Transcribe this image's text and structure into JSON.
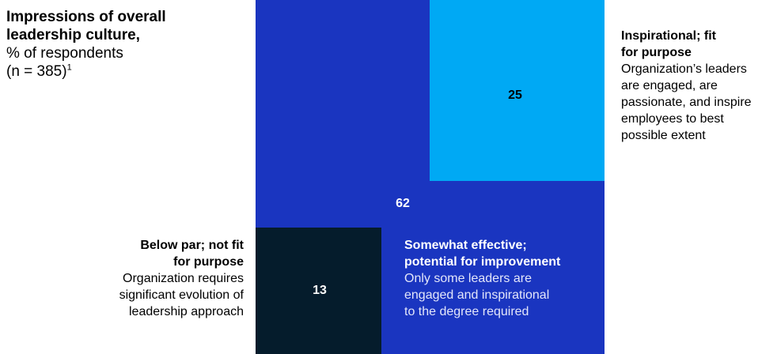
{
  "title": "Impressions of overall leadership culture,",
  "subtitle": "% of respondents",
  "sample": "(n = 385)",
  "footnote_marker": "1",
  "colors": {
    "somewhat": "#1a35c0",
    "inspirational": "#00a9f4",
    "below": "#051c2c"
  },
  "chart_data": {
    "type": "treemap",
    "title": "Impressions of overall leadership culture, % of respondents (n = 385)",
    "unit": "% of respondents",
    "n": 385,
    "categories": [
      "Inspirational; fit for purpose",
      "Somewhat effective; potential for improvement",
      "Below par; not fit for purpose"
    ],
    "values": [
      25,
      62,
      13
    ],
    "segments": [
      {
        "key": "inspirational",
        "value": 25,
        "value_label": "25",
        "heading": "Inspirational; fit for purpose",
        "heading_line1": "Inspirational; fit",
        "heading_line2": "for purpose",
        "description_lines": [
          "Organization’s leaders",
          "are engaged, are",
          "passionate, and inspire",
          "employees to best",
          "possible extent"
        ]
      },
      {
        "key": "somewhat",
        "value": 62,
        "value_label": "62",
        "heading": "Somewhat effective; potential for improvement",
        "heading_line1": "Somewhat effective;",
        "heading_line2": "potential for improvement",
        "description_lines": [
          "Only some leaders are",
          "engaged and inspirational",
          "to the degree required"
        ]
      },
      {
        "key": "below",
        "value": 13,
        "value_label": "13",
        "heading": "Below par; not fit for purpose",
        "heading_line1": "Below par; not fit",
        "heading_line2": "for purpose",
        "description_lines": [
          "Organization requires",
          "significant evolution of",
          "leadership approach"
        ]
      }
    ]
  }
}
